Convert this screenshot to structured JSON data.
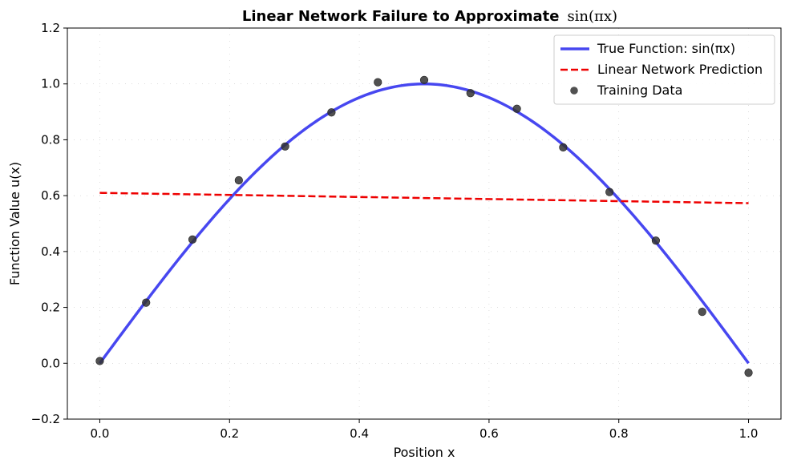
{
  "chart_data": {
    "type": "line",
    "title": {
      "prefix": "Linear Network Failure to Approximate",
      "math": "sin(πx)"
    },
    "xlabel": "Position x",
    "ylabel": "Function Value u(x)",
    "xlim": [
      -0.05,
      1.05
    ],
    "ylim": [
      -0.2,
      1.2
    ],
    "xticks": [
      0.0,
      0.2,
      0.4,
      0.6,
      0.8,
      1.0
    ],
    "xtick_labels": [
      "0.0",
      "0.2",
      "0.4",
      "0.6",
      "0.8",
      "1.0"
    ],
    "yticks": [
      -0.2,
      0.0,
      0.2,
      0.4,
      0.6,
      0.8,
      1.0,
      1.2
    ],
    "ytick_labels": [
      "−0.2",
      "0.0",
      "0.2",
      "0.4",
      "0.6",
      "0.8",
      "1.0",
      "1.2"
    ],
    "grid": true,
    "legend_position": "top-right",
    "series": [
      {
        "name": "True Function: sin(πx)",
        "kind": "line",
        "style": "solid",
        "color": "#3333ee",
        "function": "sin(pi*x)",
        "x_range": [
          0.0,
          1.0
        ]
      },
      {
        "name": "Linear Network Prediction",
        "kind": "line",
        "style": "dashed",
        "color": "#ee0000",
        "x": [
          0.0,
          1.0
        ],
        "y": [
          0.61,
          0.573
        ]
      },
      {
        "name": "Training Data",
        "kind": "scatter",
        "color": "#333333",
        "x": [
          0.0,
          0.0714,
          0.1429,
          0.2143,
          0.2857,
          0.3571,
          0.4286,
          0.5,
          0.5714,
          0.6429,
          0.7143,
          0.7857,
          0.8571,
          0.9286,
          1.0
        ],
        "y": [
          0.008,
          0.217,
          0.443,
          0.655,
          0.776,
          0.898,
          1.006,
          1.014,
          0.967,
          0.911,
          0.773,
          0.613,
          0.439,
          0.184,
          -0.034
        ]
      }
    ]
  }
}
